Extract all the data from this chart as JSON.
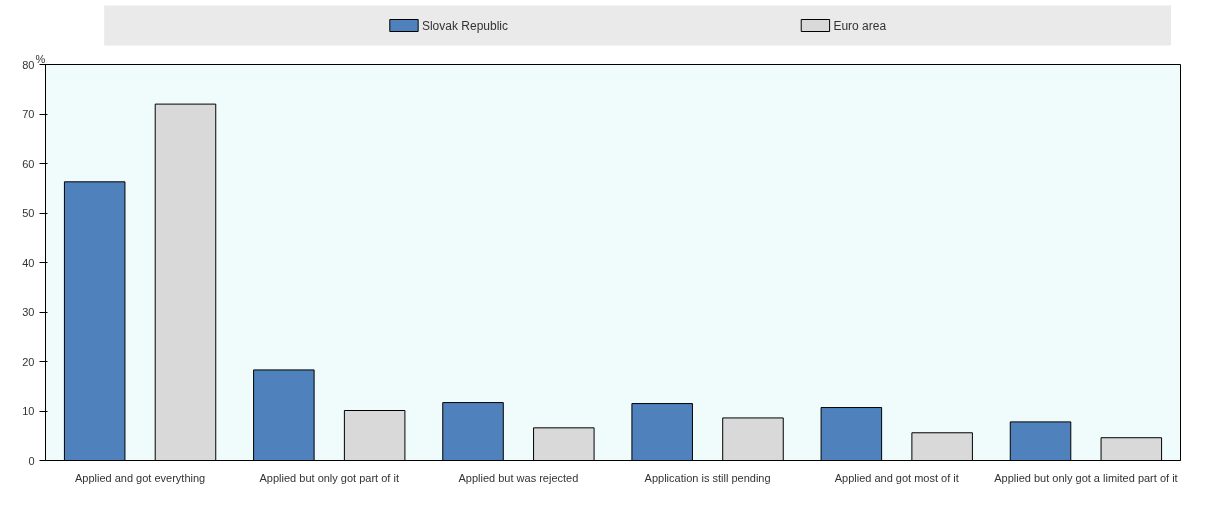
{
  "chart_data": {
    "type": "bar",
    "ylabel": "%",
    "categories": [
      "Applied and got everything",
      "Applied but only got part of it",
      "Applied but was rejected",
      "Application is still pending",
      "Applied and got most of it",
      "Applied but only got a limited part of it"
    ],
    "series": [
      {
        "name": "Slovak Republic",
        "color": "#4f81bd",
        "values": [
          56.3,
          18.3,
          11.7,
          11.5,
          10.7,
          7.8
        ]
      },
      {
        "name": "Euro area",
        "color": "#d9d9d9",
        "values": [
          72.0,
          10.1,
          6.6,
          8.6,
          5.6,
          4.6
        ]
      }
    ],
    "ylim": [
      0,
      80
    ],
    "yticks": [
      0,
      10,
      20,
      30,
      40,
      50,
      60,
      70,
      80
    ],
    "grid": false,
    "legend": "top"
  }
}
